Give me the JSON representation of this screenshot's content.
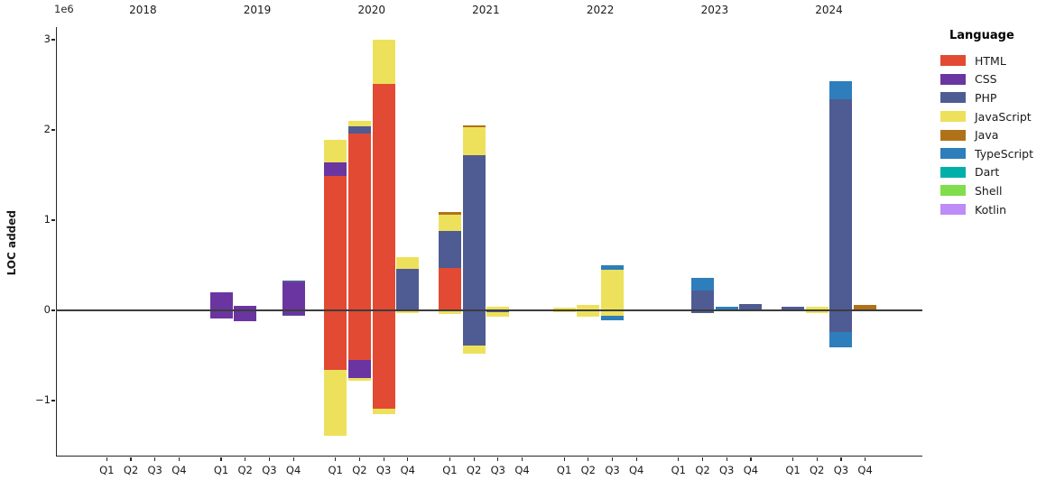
{
  "figure": {
    "ylabel": "LOC added",
    "axis_offset_label": "1e6"
  },
  "legend": {
    "title": "Language",
    "items": [
      {
        "label": "HTML",
        "color": "#e24a33"
      },
      {
        "label": "CSS",
        "color": "#6a35a0"
      },
      {
        "label": "PHP",
        "color": "#4f5b93"
      },
      {
        "label": "JavaScript",
        "color": "#ede15b"
      },
      {
        "label": "Java",
        "color": "#b07219"
      },
      {
        "label": "TypeScript",
        "color": "#2e7ebc"
      },
      {
        "label": "Dart",
        "color": "#00b0a8"
      },
      {
        "label": "Shell",
        "color": "#82dd4c"
      },
      {
        "label": "Kotlin",
        "color": "#bd8cf7"
      }
    ]
  },
  "chart_data": {
    "type": "bar",
    "stacked": true,
    "diverging": true,
    "title": "",
    "ylabel": "LOC added",
    "y_offset_label": "1e6",
    "value_unit": "values are in units of 1e6 LOC added (negative = removed)",
    "years": [
      "2018",
      "2019",
      "2020",
      "2021",
      "2022",
      "2023",
      "2024"
    ],
    "quarter_labels": [
      "Q1",
      "Q2",
      "Q3",
      "Q4"
    ],
    "yticks": [
      3,
      2,
      1,
      0,
      -1
    ],
    "ylim": [
      -1.62,
      3.14
    ],
    "grid": false,
    "legend_position": "outside upper right",
    "bars": [
      {
        "year": "2019",
        "quarter": "Q1",
        "segments": [
          {
            "lang": "CSS",
            "value": 0.2
          },
          {
            "lang": "CSS",
            "value": -0.09
          }
        ]
      },
      {
        "year": "2019",
        "quarter": "Q2",
        "segments": [
          {
            "lang": "CSS",
            "value": 0.05
          },
          {
            "lang": "CSS",
            "value": -0.12
          }
        ]
      },
      {
        "year": "2019",
        "quarter": "Q4",
        "segments": [
          {
            "lang": "CSS",
            "value": 0.31
          },
          {
            "lang": "PHP",
            "value": 0.02
          },
          {
            "lang": "CSS",
            "value": -0.05
          },
          {
            "lang": "PHP",
            "value": -0.01
          }
        ]
      },
      {
        "year": "2020",
        "quarter": "Q1",
        "segments": [
          {
            "lang": "HTML",
            "value": 1.49
          },
          {
            "lang": "CSS",
            "value": 0.15
          },
          {
            "lang": "JavaScript",
            "value": 0.25
          },
          {
            "lang": "HTML",
            "value": -0.66
          },
          {
            "lang": "JavaScript",
            "value": -0.73
          }
        ]
      },
      {
        "year": "2020",
        "quarter": "Q2",
        "segments": [
          {
            "lang": "HTML",
            "value": 1.96
          },
          {
            "lang": "PHP",
            "value": 0.08
          },
          {
            "lang": "JavaScript",
            "value": 0.06
          },
          {
            "lang": "HTML",
            "value": -0.55
          },
          {
            "lang": "CSS",
            "value": -0.2
          },
          {
            "lang": "JavaScript",
            "value": -0.03
          }
        ]
      },
      {
        "year": "2020",
        "quarter": "Q3",
        "segments": [
          {
            "lang": "HTML",
            "value": 2.51
          },
          {
            "lang": "JavaScript",
            "value": 0.49
          },
          {
            "lang": "HTML",
            "value": -1.09
          },
          {
            "lang": "JavaScript",
            "value": -0.06
          }
        ]
      },
      {
        "year": "2020",
        "quarter": "Q4",
        "segments": [
          {
            "lang": "PHP",
            "value": 0.46
          },
          {
            "lang": "JavaScript",
            "value": 0.13
          },
          {
            "lang": "JavaScript",
            "value": -0.03
          }
        ]
      },
      {
        "year": "2021",
        "quarter": "Q1",
        "segments": [
          {
            "lang": "HTML",
            "value": 0.47
          },
          {
            "lang": "PHP",
            "value": 0.41
          },
          {
            "lang": "JavaScript",
            "value": 0.18
          },
          {
            "lang": "Java",
            "value": 0.03
          },
          {
            "lang": "JavaScript",
            "value": -0.04
          }
        ]
      },
      {
        "year": "2021",
        "quarter": "Q2",
        "segments": [
          {
            "lang": "PHP",
            "value": 1.72
          },
          {
            "lang": "JavaScript",
            "value": 0.31
          },
          {
            "lang": "Java",
            "value": 0.02
          },
          {
            "lang": "PHP",
            "value": -0.39
          },
          {
            "lang": "JavaScript",
            "value": -0.09
          }
        ]
      },
      {
        "year": "2021",
        "quarter": "Q3",
        "segments": [
          {
            "lang": "JavaScript",
            "value": 0.04
          },
          {
            "lang": "PHP",
            "value": -0.02
          },
          {
            "lang": "JavaScript",
            "value": -0.05
          }
        ]
      },
      {
        "year": "2022",
        "quarter": "Q1",
        "segments": [
          {
            "lang": "JavaScript",
            "value": 0.03
          },
          {
            "lang": "JavaScript",
            "value": -0.02
          }
        ]
      },
      {
        "year": "2022",
        "quarter": "Q2",
        "segments": [
          {
            "lang": "JavaScript",
            "value": 0.06
          },
          {
            "lang": "JavaScript",
            "value": -0.07
          }
        ]
      },
      {
        "year": "2022",
        "quarter": "Q3",
        "segments": [
          {
            "lang": "JavaScript",
            "value": 0.45
          },
          {
            "lang": "TypeScript",
            "value": 0.05
          },
          {
            "lang": "JavaScript",
            "value": -0.06
          },
          {
            "lang": "TypeScript",
            "value": -0.05
          }
        ]
      },
      {
        "year": "2023",
        "quarter": "Q2",
        "segments": [
          {
            "lang": "PHP",
            "value": 0.22
          },
          {
            "lang": "TypeScript",
            "value": 0.14
          },
          {
            "lang": "PHP",
            "value": -0.03
          }
        ]
      },
      {
        "year": "2023",
        "quarter": "Q3",
        "segments": [
          {
            "lang": "PHP",
            "value": 0.01
          },
          {
            "lang": "TypeScript",
            "value": 0.03
          },
          {
            "lang": "PHP",
            "value": -0.01
          }
        ]
      },
      {
        "year": "2023",
        "quarter": "Q4",
        "segments": [
          {
            "lang": "PHP",
            "value": 0.07
          }
        ]
      },
      {
        "year": "2024",
        "quarter": "Q1",
        "segments": [
          {
            "lang": "PHP",
            "value": 0.04
          }
        ]
      },
      {
        "year": "2024",
        "quarter": "Q2",
        "segments": [
          {
            "lang": "JavaScript",
            "value": 0.04
          },
          {
            "lang": "JavaScript",
            "value": -0.03
          }
        ]
      },
      {
        "year": "2024",
        "quarter": "Q3",
        "segments": [
          {
            "lang": "PHP",
            "value": 2.34
          },
          {
            "lang": "TypeScript",
            "value": 0.2
          },
          {
            "lang": "PHP",
            "value": -0.24
          },
          {
            "lang": "TypeScript",
            "value": -0.17
          }
        ]
      },
      {
        "year": "2024",
        "quarter": "Q4",
        "segments": [
          {
            "lang": "Java",
            "value": 0.06
          }
        ]
      }
    ]
  }
}
